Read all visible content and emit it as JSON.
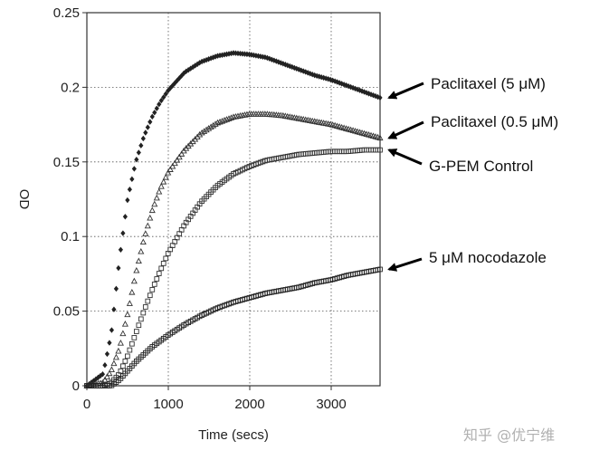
{
  "chart_data": {
    "type": "scatter",
    "xlabel": "Time (secs)",
    "ylabel": "OD",
    "xlim": [
      0,
      3600
    ],
    "ylim": [
      0,
      0.25
    ],
    "x_ticks": [
      "0",
      "1000",
      "2000",
      "3000"
    ],
    "x_tick_values": [
      0,
      1000,
      2000,
      3000
    ],
    "y_ticks": [
      "0",
      "0.05",
      "0.1",
      "0.15",
      "0.2",
      "0.25"
    ],
    "y_tick_values": [
      0,
      0.05,
      0.1,
      0.15,
      0.2,
      0.25
    ],
    "grid": "dotted",
    "series": [
      {
        "name": "Paclitaxel (5 μM)",
        "marker": "diamond",
        "color": "#222222",
        "x": [
          0,
          200,
          300,
          400,
          500,
          600,
          700,
          800,
          900,
          1000,
          1200,
          1400,
          1600,
          1800,
          2000,
          2200,
          2400,
          2600,
          2800,
          3000,
          3200,
          3400,
          3600
        ],
        "y": [
          0.0,
          0.008,
          0.035,
          0.085,
          0.125,
          0.15,
          0.167,
          0.18,
          0.19,
          0.198,
          0.21,
          0.217,
          0.221,
          0.223,
          0.222,
          0.22,
          0.216,
          0.212,
          0.208,
          0.205,
          0.201,
          0.197,
          0.193
        ]
      },
      {
        "name": "Paclitaxel (0.5 μM)",
        "marker": "triangle",
        "color": "#333333",
        "x": [
          0,
          200,
          300,
          400,
          500,
          600,
          700,
          800,
          900,
          1000,
          1200,
          1400,
          1600,
          1800,
          2000,
          2200,
          2400,
          2600,
          2800,
          3000,
          3200,
          3400,
          3600
        ],
        "y": [
          0.0,
          0.002,
          0.01,
          0.025,
          0.048,
          0.075,
          0.098,
          0.117,
          0.132,
          0.143,
          0.158,
          0.169,
          0.176,
          0.18,
          0.182,
          0.182,
          0.181,
          0.179,
          0.177,
          0.175,
          0.172,
          0.169,
          0.166
        ]
      },
      {
        "name": "G-PEM Control",
        "marker": "square",
        "color": "#333333",
        "x": [
          0,
          200,
          300,
          400,
          500,
          600,
          700,
          800,
          900,
          1000,
          1200,
          1400,
          1600,
          1800,
          2000,
          2200,
          2400,
          2600,
          2800,
          3000,
          3200,
          3400,
          3600
        ],
        "y": [
          0.0,
          0.0,
          0.002,
          0.008,
          0.02,
          0.035,
          0.05,
          0.064,
          0.077,
          0.089,
          0.108,
          0.123,
          0.134,
          0.142,
          0.147,
          0.151,
          0.153,
          0.155,
          0.156,
          0.157,
          0.157,
          0.158,
          0.158
        ]
      },
      {
        "name": "5 μM nocodazole",
        "marker": "square",
        "color": "#222222",
        "x": [
          0,
          300,
          400,
          500,
          600,
          800,
          1000,
          1200,
          1400,
          1600,
          1800,
          2000,
          2200,
          2400,
          2600,
          2800,
          3000,
          3200,
          3400,
          3600
        ],
        "y": [
          0.0,
          0.0,
          0.004,
          0.01,
          0.016,
          0.026,
          0.034,
          0.041,
          0.047,
          0.052,
          0.056,
          0.059,
          0.062,
          0.064,
          0.066,
          0.069,
          0.071,
          0.074,
          0.076,
          0.078
        ]
      }
    ],
    "annotations": [
      {
        "text": "Paclitaxel (5 μM)",
        "series_index": 0
      },
      {
        "text": "Paclitaxel (0.5 μM)",
        "series_index": 1
      },
      {
        "text": "G-PEM Control",
        "series_index": 2
      },
      {
        "text": "5 μM nocodazole",
        "series_index": 3
      }
    ]
  },
  "watermark": "知乎 @优宁维"
}
